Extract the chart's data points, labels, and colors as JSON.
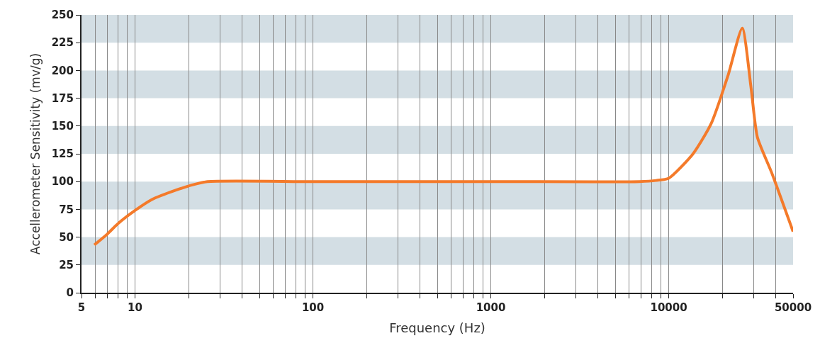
{
  "chart_data": {
    "type": "line",
    "xlabel": "Frequency (Hz)",
    "ylabel": "Accellerometer Sensitivity (mv/g)",
    "log": "x",
    "x": [
      5.9,
      7,
      8,
      10,
      12.5,
      16.8,
      21,
      25.5,
      100,
      1000,
      6840,
      8500,
      10000,
      13700,
      17300,
      21500,
      25900,
      29000,
      31500,
      37900,
      50000
    ],
    "series": [
      {
        "color": "#f47a2a",
        "values": [
          43,
          53,
          62,
          74,
          84,
          92,
          97,
          100,
          100,
          100,
          100,
          101,
          103,
          125,
          152,
          195,
          238,
          185,
          140,
          108,
          55
        ]
      }
    ],
    "xlim": [
      5,
      50000
    ],
    "xticks": [
      5,
      {
        "value": 6,
        "label": null
      },
      {
        "value": 7,
        "label": null
      },
      {
        "value": 8,
        "label": null
      },
      {
        "value": 9,
        "label": null
      },
      10,
      {
        "value": 20,
        "label": null
      },
      {
        "value": 30,
        "label": null
      },
      {
        "value": 40,
        "label": null
      },
      {
        "value": 50,
        "label": null
      },
      {
        "value": 60,
        "label": null
      },
      {
        "value": 70,
        "label": null
      },
      {
        "value": 80,
        "label": null
      },
      {
        "value": 90,
        "label": null
      },
      100,
      {
        "value": 200,
        "label": null
      },
      {
        "value": 300,
        "label": null
      },
      {
        "value": 400,
        "label": null
      },
      {
        "value": 500,
        "label": null
      },
      {
        "value": 600,
        "label": null
      },
      {
        "value": 700,
        "label": null
      },
      {
        "value": 800,
        "label": null
      },
      {
        "value": 900,
        "label": null
      },
      1000,
      {
        "value": 2000,
        "label": null
      },
      {
        "value": 3000,
        "label": null
      },
      {
        "value": 4000,
        "label": null
      },
      {
        "value": 5000,
        "label": null
      },
      {
        "value": 6000,
        "label": null
      },
      {
        "value": 7000,
        "label": null
      },
      {
        "value": 8000,
        "label": null
      },
      {
        "value": 9000,
        "label": null
      },
      10000,
      {
        "value": 20000,
        "label": null
      },
      {
        "value": 30000,
        "label": null
      },
      {
        "value": 40000,
        "label": null
      },
      50000
    ],
    "ylim": [
      0,
      250
    ],
    "yticks": [
      0,
      25,
      50,
      75,
      100,
      125,
      150,
      175,
      200,
      225,
      250
    ],
    "grid": "x",
    "line_style": "solid",
    "marker": "none",
    "bands": [
      {
        "axis": "y",
        "from": 25,
        "to": 50,
        "color": "#d3dee4"
      },
      {
        "axis": "y",
        "from": 75,
        "to": 100,
        "color": "#d3dee4"
      },
      {
        "axis": "y",
        "from": 125,
        "to": 150,
        "color": "#d3dee4"
      },
      {
        "axis": "y",
        "from": 175,
        "to": 200,
        "color": "#d3dee4"
      },
      {
        "axis": "y",
        "from": 225,
        "to": 250,
        "color": "#d3dee4"
      }
    ]
  }
}
